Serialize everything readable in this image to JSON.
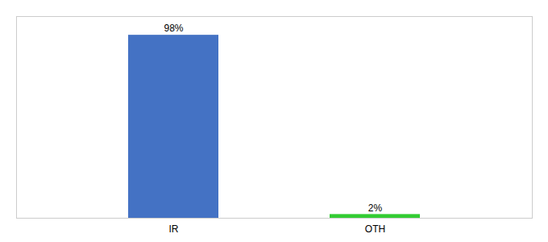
{
  "chart_data": {
    "type": "bar",
    "categories": [
      "IR",
      "OTH"
    ],
    "values": [
      98,
      2
    ],
    "colors": [
      "#4472c4",
      "#33cc33"
    ],
    "data_labels": true,
    "value_labels": [
      "98%",
      "2%"
    ],
    "ylim": [
      0,
      108
    ],
    "tick_labels": "x"
  }
}
